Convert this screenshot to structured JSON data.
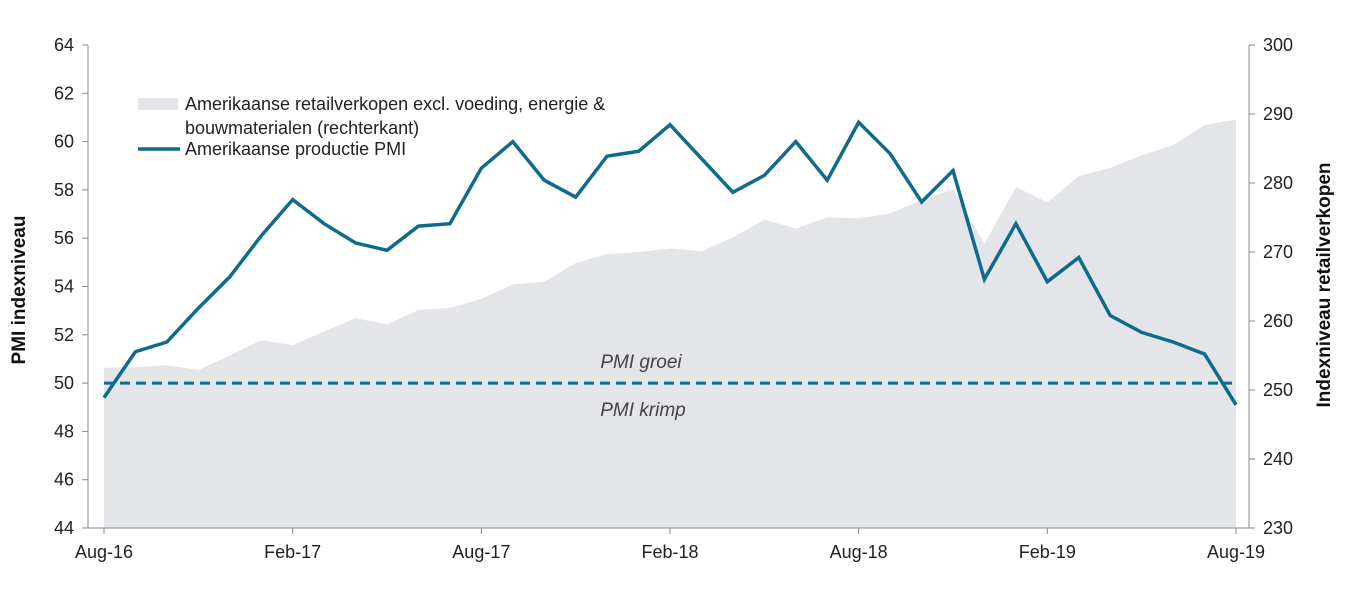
{
  "chart_data": {
    "type": "line",
    "x": [
      "Aug-16",
      "Sep-16",
      "Oct-16",
      "Nov-16",
      "Dec-16",
      "Jan-17",
      "Feb-17",
      "Mar-17",
      "Apr-17",
      "May-17",
      "Jun-17",
      "Jul-17",
      "Aug-17",
      "Sep-17",
      "Oct-17",
      "Nov-17",
      "Dec-17",
      "Jan-18",
      "Feb-18",
      "Mar-18",
      "Apr-18",
      "May-18",
      "Jun-18",
      "Jul-18",
      "Aug-18",
      "Sep-18",
      "Oct-18",
      "Nov-18",
      "Dec-18",
      "Jan-19",
      "Feb-19",
      "Mar-19",
      "Apr-19",
      "May-19",
      "Jun-19",
      "Jul-19",
      "Aug-19"
    ],
    "x_tick_labels": [
      "Aug-16",
      "Feb-17",
      "Aug-17",
      "Feb-18",
      "Aug-18",
      "Feb-19",
      "Aug-19"
    ],
    "series": [
      {
        "name": "Amerikaanse retailverkopen excl. voeding, energie & bouwmaterialen (rechterkant)",
        "type": "area",
        "axis": "right",
        "color": "#e3e5e8",
        "values": [
          253.2,
          253.3,
          253.6,
          252.9,
          255.0,
          257.2,
          256.5,
          258.5,
          260.4,
          259.5,
          261.6,
          261.9,
          263.2,
          265.3,
          265.7,
          268.4,
          269.7,
          270.0,
          270.5,
          270.1,
          272.1,
          274.7,
          273.4,
          275.0,
          274.9,
          275.6,
          277.5,
          279.1,
          271.2,
          279.4,
          277.2,
          281.0,
          282.2,
          284.0,
          285.5,
          288.4,
          289.2
        ]
      },
      {
        "name": "Amerikaanse productie PMI",
        "type": "line",
        "axis": "left",
        "color": "#0f6b8c",
        "values": [
          49.4,
          51.3,
          51.7,
          53.1,
          54.4,
          56.1,
          57.6,
          56.6,
          55.8,
          55.5,
          56.5,
          56.6,
          58.9,
          60.0,
          58.4,
          57.7,
          59.4,
          59.6,
          60.7,
          59.3,
          57.9,
          58.6,
          60.0,
          58.4,
          60.8,
          59.5,
          57.5,
          58.8,
          54.3,
          56.6,
          54.2,
          55.2,
          52.8,
          52.1,
          51.7,
          51.2,
          49.1
        ]
      }
    ],
    "reference_line": {
      "value": 50,
      "axis": "left",
      "style": "dashed",
      "color": "#0f6b8c"
    },
    "ylabel": "PMI indexniveau",
    "ylim": [
      44,
      64
    ],
    "y_ticks": [
      44,
      46,
      48,
      50,
      52,
      54,
      56,
      58,
      60,
      62,
      64
    ],
    "y2label": "Indexniveau retailverkopen",
    "y2lim": [
      230,
      300
    ],
    "y2_ticks": [
      230,
      240,
      250,
      260,
      270,
      280,
      290,
      300
    ],
    "legend_position": "top-left",
    "annotations": {
      "above": "PMI groei",
      "below": "PMI krimp"
    },
    "grid": false
  },
  "legend": {
    "area_line1": "Amerikaanse retailverkopen excl. voeding, energie &",
    "area_line2": "bouwmaterialen (rechterkant)",
    "line_label": "Amerikaanse productie PMI"
  },
  "annotations": {
    "above": "PMI groei",
    "below": "PMI krimp"
  },
  "axis_titles": {
    "left": "PMI indexniveau",
    "right": "Indexniveau retailverkopen"
  }
}
